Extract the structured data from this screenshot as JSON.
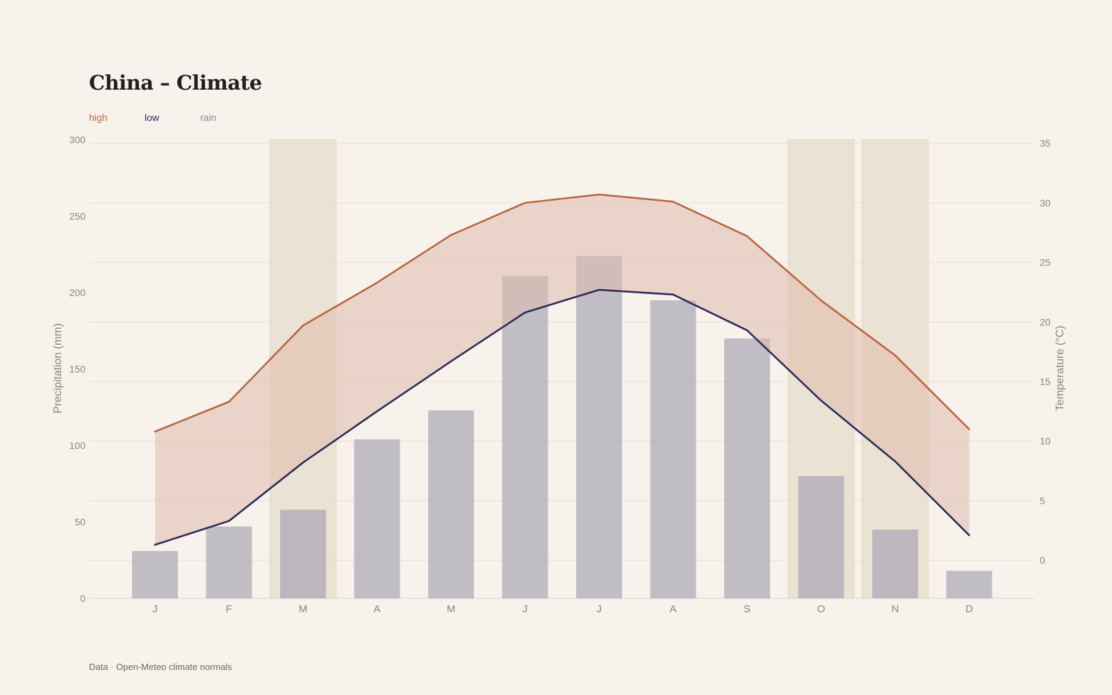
{
  "colors": {
    "high": "#b9653f",
    "low": "#2c2a5a",
    "rain": "#aaa7b5",
    "band_fill": "#e0bcad",
    "highlight": "#e6dcc9",
    "grid": "#e6ded4",
    "tick": "#8a847e"
  },
  "chart_data": {
    "type": "bar",
    "title": "China – Climate",
    "categories": [
      "J",
      "F",
      "M",
      "A",
      "M",
      "J",
      "J",
      "A",
      "S",
      "O",
      "N",
      "D"
    ],
    "series": [
      {
        "name": "high",
        "kind": "line",
        "axis": "right",
        "values": [
          10.8,
          13.3,
          19.7,
          23.3,
          27.3,
          30.0,
          30.7,
          30.1,
          27.2,
          21.8,
          17.2,
          11.0
        ]
      },
      {
        "name": "low",
        "kind": "line",
        "axis": "right",
        "values": [
          1.3,
          3.3,
          8.2,
          12.5,
          16.7,
          20.8,
          22.7,
          22.3,
          19.3,
          13.4,
          8.3,
          2.1
        ]
      },
      {
        "name": "rain",
        "kind": "bar",
        "axis": "left",
        "values": [
          31,
          47,
          58,
          104,
          123,
          211,
          224,
          195,
          170,
          80,
          45,
          18
        ]
      }
    ],
    "highlight_months": [
      2,
      9,
      10
    ],
    "ylabel": "Precipitation (mm)",
    "ylabel_right": "Temperature (°C)",
    "ylim": [
      0,
      300
    ],
    "ylim_right": [
      -3.2,
      35.3
    ],
    "yticks": [
      0,
      50,
      100,
      150,
      200,
      250,
      300
    ],
    "yticks_right": [
      0,
      5,
      10,
      15,
      20,
      25,
      30,
      35
    ],
    "legend": [
      "high",
      "low",
      "rain"
    ],
    "legend_position": "top-left",
    "grid": true
  },
  "source": "Data · Open-Meteo climate normals"
}
